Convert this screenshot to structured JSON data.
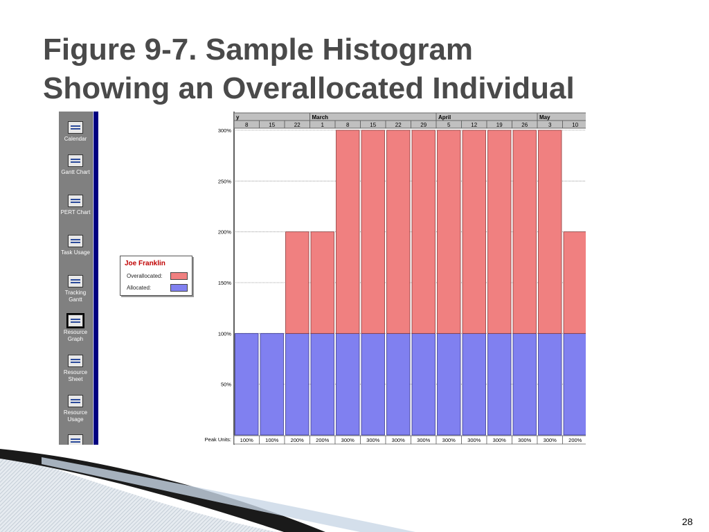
{
  "slide": {
    "title_line1": "Figure 9-7. Sample Histogram",
    "title_line2": "Showing an Overallocated Individual",
    "page_number": "28"
  },
  "sidebar": {
    "items": [
      {
        "label": "Calendar",
        "icon": "calendar-icon"
      },
      {
        "label": "Gantt Chart",
        "icon": "gantt-chart-icon"
      },
      {
        "label": "PERT Chart",
        "icon": "pert-chart-icon"
      },
      {
        "label": "Task Usage",
        "icon": "task-usage-icon"
      },
      {
        "label": "Tracking Gantt",
        "icon": "tracking-gantt-icon"
      },
      {
        "label": "Resource Graph",
        "icon": "resource-graph-icon",
        "selected": true
      },
      {
        "label": "Resource Sheet",
        "icon": "resource-sheet-icon"
      },
      {
        "label": "Resource Usage",
        "icon": "resource-usage-icon"
      }
    ]
  },
  "legend": {
    "resource_name": "Joe Franklin",
    "overallocated_label": "Overallocated:",
    "allocated_label": "Allocated:"
  },
  "colors": {
    "overallocated": "#f08080",
    "allocated": "#8080f0",
    "header": "#c0c0c0",
    "nav_bar": "#000080"
  },
  "chart_data": {
    "type": "bar",
    "stacked": true,
    "timescale_months": [
      {
        "label": "y",
        "weeks": 3
      },
      {
        "label": "March",
        "weeks": 5
      },
      {
        "label": "April",
        "weeks": 4
      },
      {
        "label": "May",
        "weeks": 2
      }
    ],
    "categories": [
      "8",
      "15",
      "22",
      "1",
      "8",
      "15",
      "22",
      "29",
      "5",
      "12",
      "19",
      "26",
      "3",
      "10"
    ],
    "series": [
      {
        "name": "Allocated:",
        "values": [
          100,
          100,
          100,
          100,
          100,
          100,
          100,
          100,
          100,
          100,
          100,
          100,
          100,
          100
        ]
      },
      {
        "name": "Overallocated:",
        "values": [
          0,
          0,
          100,
          100,
          200,
          200,
          200,
          200,
          200,
          200,
          200,
          200,
          200,
          100
        ]
      }
    ],
    "peak_units_label": "Peak Units:",
    "peak_units": [
      "100%",
      "100%",
      "200%",
      "200%",
      "300%",
      "300%",
      "300%",
      "300%",
      "300%",
      "300%",
      "300%",
      "300%",
      "300%",
      "200%"
    ],
    "y_ticks": [
      {
        "value": 50,
        "label": "50%"
      },
      {
        "value": 100,
        "label": "100%"
      },
      {
        "value": 150,
        "label": "150%"
      },
      {
        "value": 200,
        "label": "200%"
      },
      {
        "value": 250,
        "label": "250%"
      },
      {
        "value": 300,
        "label": "300%"
      }
    ],
    "ylim": [
      0,
      300
    ],
    "grid": true,
    "legend_position": "left"
  }
}
